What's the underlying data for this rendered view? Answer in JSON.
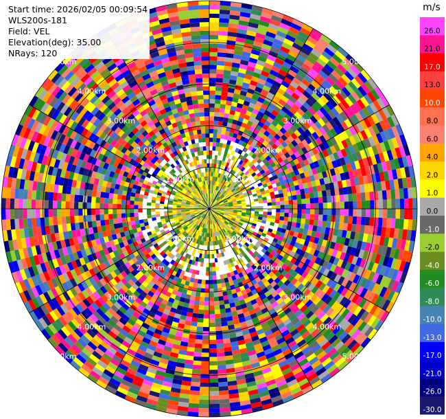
{
  "header": {
    "start_time": "Start time: 2026/02/05 00:09:54",
    "instrument": "WLS200s-181",
    "field": "Field: VEL",
    "elevation": "Elevation(deg): 35.00",
    "nrays": "NRays: 120"
  },
  "chart_data": {
    "type": "heatmap",
    "projection": "polar-ppi",
    "field": "VEL",
    "units": "m/s",
    "elevation_deg": 35.0,
    "n_rays": 120,
    "grid": true,
    "range_rings_km": [
      "1.00km",
      "2.00km",
      "3.00km",
      "4.00km",
      "5.00km"
    ],
    "colorbar": {
      "title": "m/s",
      "placement": "right",
      "tick_labels": [
        "26.0",
        "21.0",
        "17.0",
        "13.0",
        "10.0",
        "8.0",
        "6.0",
        "4.0",
        "2.0",
        "1.0",
        "0.0",
        "-1.0",
        "-2.0",
        "-4.0",
        "-6.0",
        "-8.0",
        "-10.0",
        "-13.0",
        "-17.0",
        "-21.0",
        "-26.0",
        "-30.0"
      ],
      "colors": [
        "#ff44ff",
        "#ff1493",
        "#ff0000",
        "#ff4040",
        "#ff4500",
        "#ff7050",
        "#fa8072",
        "#ffa500",
        "#ffd700",
        "#ffff00",
        "#a9a9a9",
        "#696969",
        "#9acd32",
        "#6b8e23",
        "#228b22",
        "#2e8b57",
        "#4682b4",
        "#4169e1",
        "#0000ff",
        "#0000cd",
        "#000080",
        "#191970"
      ]
    }
  }
}
